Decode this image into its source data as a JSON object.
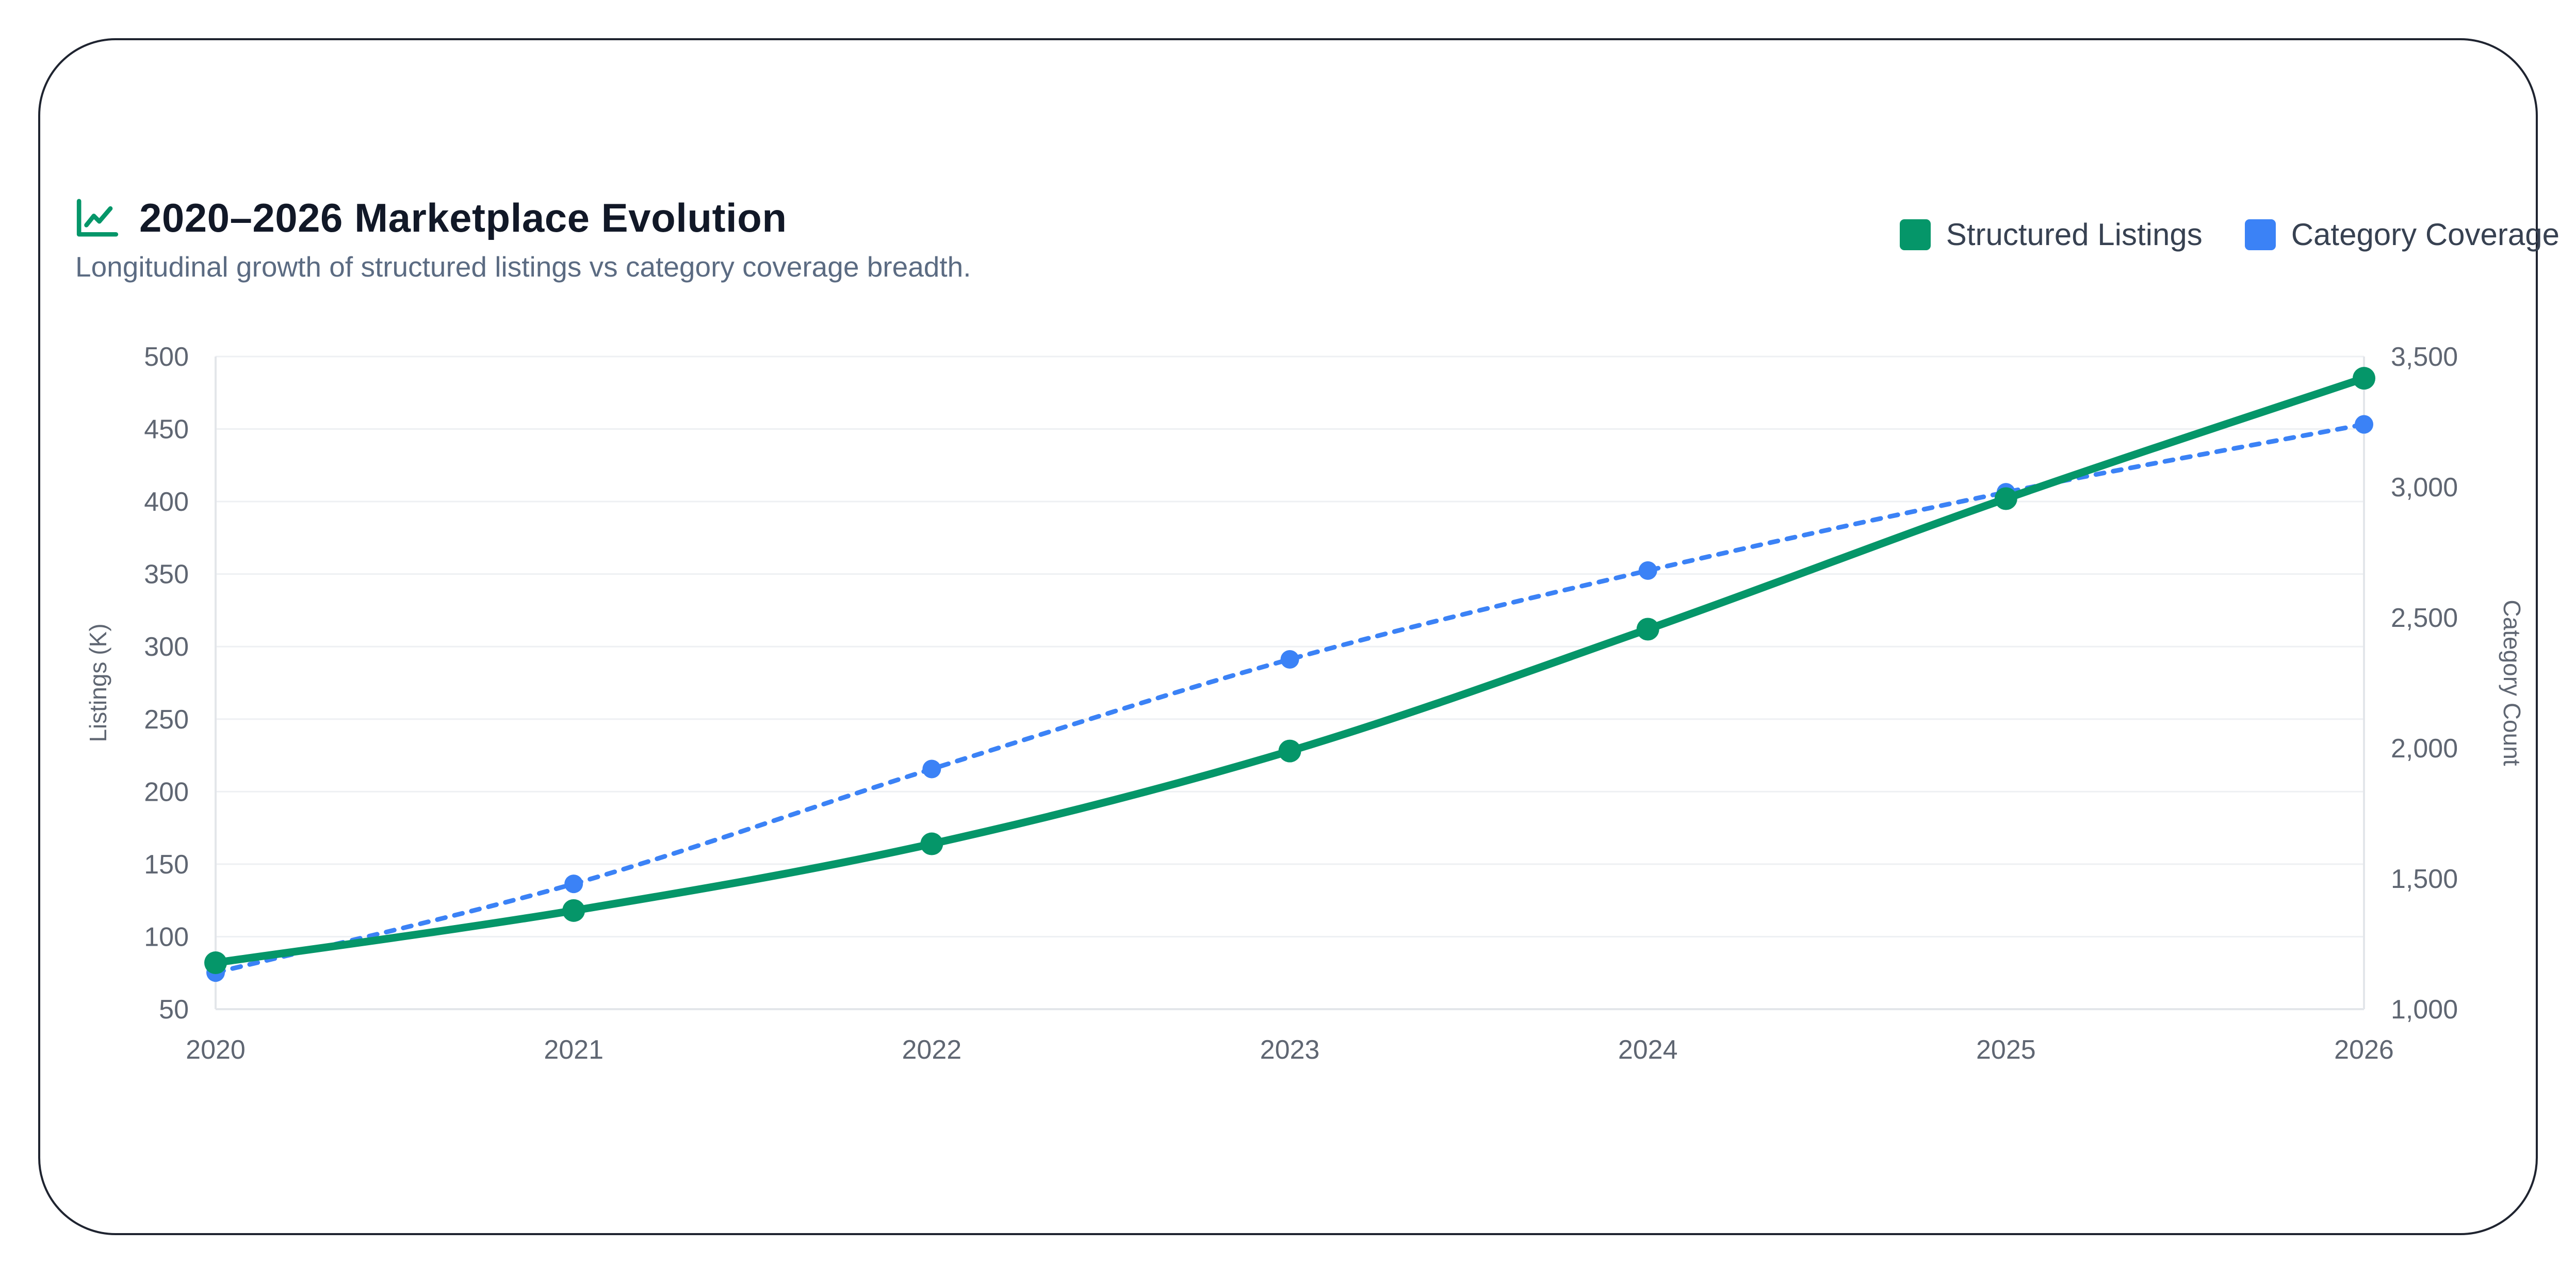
{
  "header": {
    "title": "2020–2026 Marketplace Evolution",
    "subtitle": "Longitudinal growth of structured listings vs category coverage breadth.",
    "icon": "trend-chart-icon"
  },
  "legend": [
    {
      "label": "Structured Listings",
      "color": "#059669"
    },
    {
      "label": "Category Coverage",
      "color": "#3b82f6"
    }
  ],
  "chart_data": {
    "type": "line",
    "x": [
      "2020",
      "2021",
      "2022",
      "2023",
      "2024",
      "2025",
      "2026"
    ],
    "y_left": {
      "label": "Listings (K)",
      "range": [
        50,
        500
      ],
      "ticks": [
        50,
        100,
        150,
        200,
        250,
        300,
        350,
        400,
        450,
        500
      ]
    },
    "y_right": {
      "label": "Category Count",
      "range": [
        1000,
        3500
      ],
      "ticks": [
        "1,000",
        "1,500",
        "2,000",
        "2,500",
        "3,000",
        "3,500"
      ]
    },
    "series": [
      {
        "name": "Structured Listings",
        "axis": "left",
        "color": "#059669",
        "style": "solid",
        "values": [
          82,
          118,
          164,
          228,
          312,
          402,
          485
        ]
      },
      {
        "name": "Category Coverage",
        "axis": "right",
        "color": "#3b82f6",
        "style": "dotted",
        "values": [
          1140,
          1480,
          1920,
          2340,
          2680,
          2980,
          3240
        ]
      }
    ],
    "grid": true
  }
}
